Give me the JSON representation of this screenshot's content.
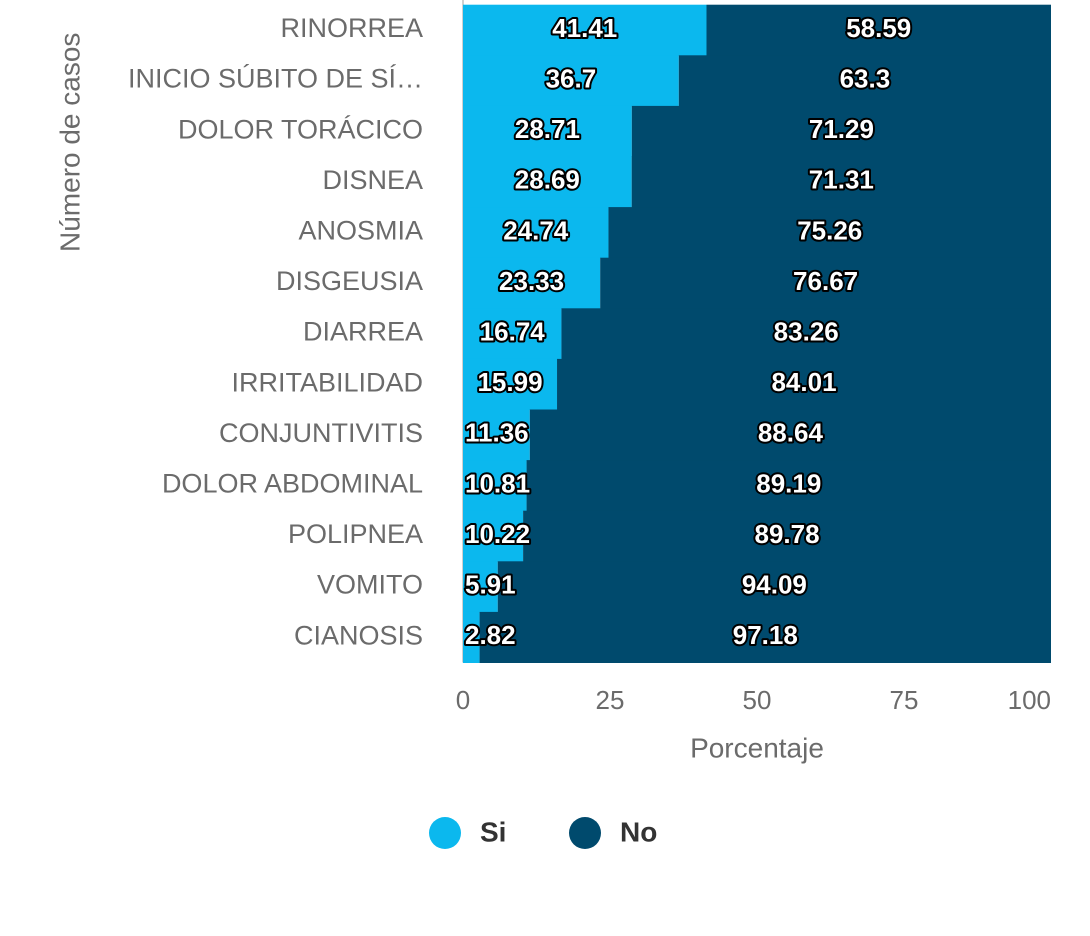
{
  "chart_data": {
    "type": "stacked_barh",
    "x_label": "Porcentaje",
    "y_label": "Número de casos",
    "categories": [
      "RINORREA",
      "INICIO SÚBITO DE SÍ…",
      "DOLOR TORÁCICO",
      "DISNEA",
      "ANOSMIA",
      "DISGEUSIA",
      "DIARREA",
      "IRRITABILIDAD",
      "CONJUNTIVITIS",
      "DOLOR ABDOMINAL",
      "POLIPNEA",
      "VOMITO",
      "CIANOSIS"
    ],
    "series": [
      {
        "name": "Si",
        "color": "#0bb8ee",
        "values": [
          41.41,
          36.7,
          28.71,
          28.69,
          24.74,
          23.33,
          16.74,
          15.99,
          11.36,
          10.81,
          10.22,
          5.91,
          2.82
        ]
      },
      {
        "name": "No",
        "color": "#004a6d",
        "values": [
          58.59,
          63.3,
          71.29,
          71.31,
          75.26,
          76.67,
          83.26,
          84.01,
          88.64,
          89.19,
          89.78,
          94.09,
          97.18
        ]
      }
    ],
    "xlim": [
      0,
      100
    ],
    "xticks": [
      0,
      25,
      50,
      75,
      100
    ]
  }
}
